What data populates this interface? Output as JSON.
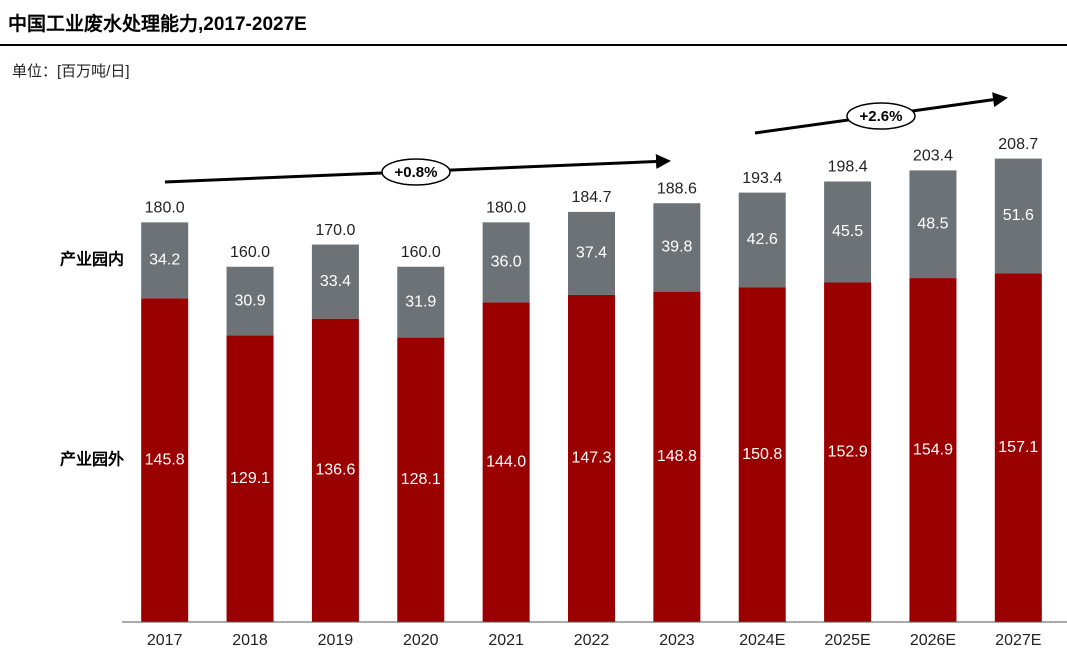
{
  "chart_data": {
    "type": "stacked_bar",
    "title": "中国工业废水处理能力,2017-2027E",
    "subtitle": "单位：[百万吨/日]",
    "categories": [
      "2017",
      "2018",
      "2019",
      "2020",
      "2021",
      "2022",
      "2023",
      "2024E",
      "2025E",
      "2026E",
      "2027E"
    ],
    "series": [
      {
        "name": "产业园外",
        "color": "#9b0000",
        "values": [
          145.8,
          129.1,
          136.6,
          128.1,
          144.0,
          147.3,
          148.8,
          150.8,
          152.9,
          154.9,
          157.1
        ],
        "value_labels": [
          "145.8",
          "129.1",
          "136.6",
          "128.1",
          "144.0",
          "147.3",
          "148.8",
          "150.8",
          "152.9",
          "154.9",
          "157.1"
        ]
      },
      {
        "name": "产业园内",
        "color": "#6d7277",
        "values": [
          34.2,
          30.9,
          33.4,
          31.9,
          36.0,
          37.4,
          39.8,
          42.6,
          45.5,
          48.5,
          51.6
        ],
        "value_labels": [
          "34.2",
          "30.9",
          "33.4",
          "31.9",
          "36.0",
          "37.4",
          "39.8",
          "42.6",
          "45.5",
          "48.5",
          "51.6"
        ]
      }
    ],
    "totals": {
      "values": [
        180.0,
        160.0,
        170.0,
        160.0,
        180.0,
        184.7,
        188.6,
        193.4,
        198.4,
        203.4,
        208.7
      ],
      "value_labels": [
        "180.0",
        "160.0",
        "170.0",
        "160.0",
        "180.0",
        "184.7",
        "188.6",
        "193.4",
        "198.4",
        "203.4",
        "208.7"
      ]
    },
    "annotations": [
      "+0.8%",
      "+2.6%"
    ],
    "ylim": [
      0,
      236
    ]
  }
}
